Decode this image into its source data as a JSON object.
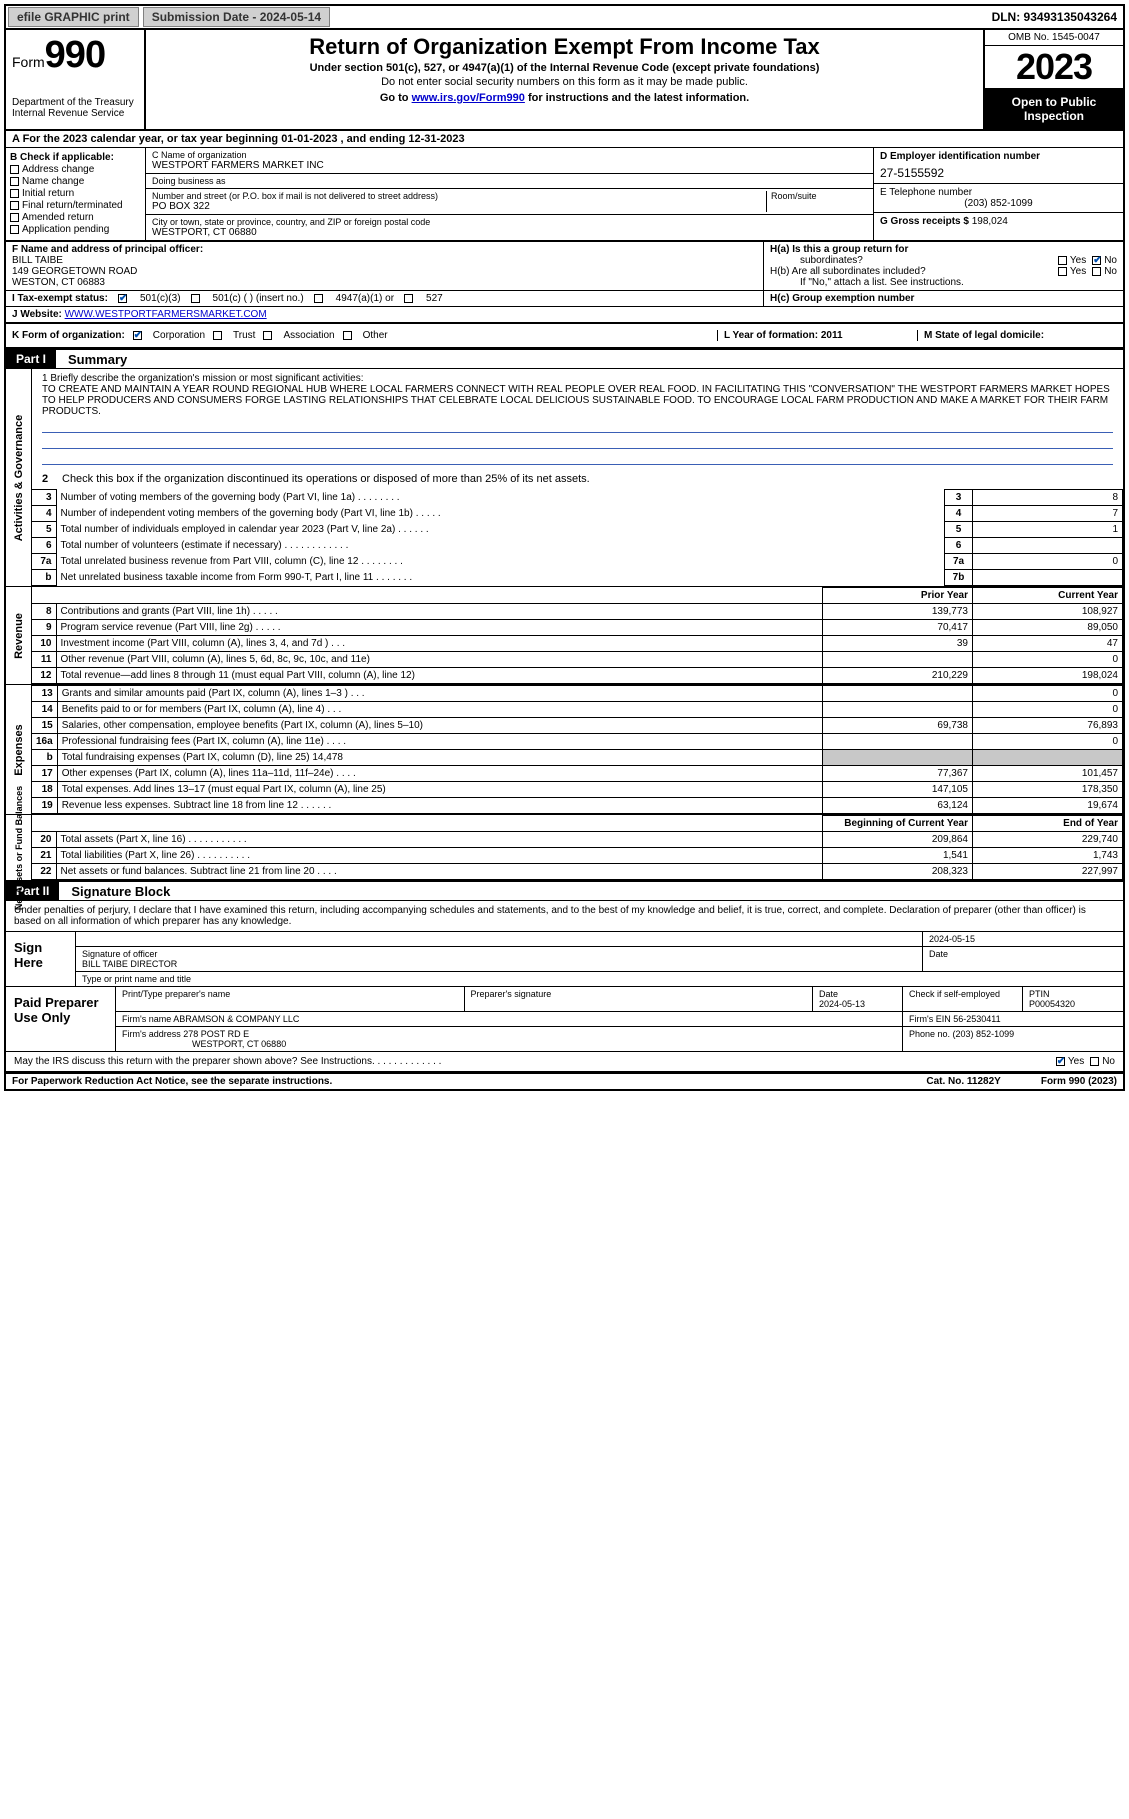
{
  "topbar": {
    "efile_btn": "efile GRAPHIC print",
    "subdate_label": "Submission Date - 2024-05-14",
    "dln_label": "DLN: 93493135043264"
  },
  "header": {
    "form_word": "Form",
    "form_no": "990",
    "dept": "Department of the Treasury",
    "irs": "Internal Revenue Service",
    "title": "Return of Organization Exempt From Income Tax",
    "sub1": "Under section 501(c), 527, or 4947(a)(1) of the Internal Revenue Code (except private foundations)",
    "sub2": "Do not enter social security numbers on this form as it may be made public.",
    "sub3_pre": "Go to ",
    "sub3_link": "www.irs.gov/Form990",
    "sub3_post": " for instructions and the latest information.",
    "omb": "OMB No. 1545-0047",
    "year": "2023",
    "inspect": "Open to Public Inspection"
  },
  "row_a": "A  For the 2023 calendar year, or tax year beginning 01-01-2023    , and ending 12-31-2023",
  "sec_b": {
    "title": "B Check if applicable:",
    "opts": [
      "Address change",
      "Name change",
      "Initial return",
      "Final return/terminated",
      "Amended return",
      "Application pending"
    ]
  },
  "sec_c": {
    "name_lbl": "C Name of organization",
    "name": "WESTPORT FARMERS MARKET INC",
    "dba_lbl": "Doing business as",
    "dba": "",
    "addr_lbl": "Number and street (or P.O. box if mail is not delivered to street address)",
    "room_lbl": "Room/suite",
    "addr": "PO BOX 322",
    "city_lbl": "City or town, state or province, country, and ZIP or foreign postal code",
    "city": "WESTPORT, CT  06880"
  },
  "sec_d": {
    "lbl": "D Employer identification number",
    "val": "27-5155592"
  },
  "sec_e": {
    "lbl": "E Telephone number",
    "val": "(203) 852-1099"
  },
  "sec_g": {
    "lbl": "G Gross receipts $",
    "val": "198,024"
  },
  "sec_f": {
    "lbl": "F Name and address of principal officer:",
    "name": "BILL TAIBE",
    "addr1": "149 GEORGETOWN ROAD",
    "addr2": "WESTON, CT  06883"
  },
  "sec_h": {
    "ha": "H(a)  Is this a group return for",
    "ha2": "subordinates?",
    "hb": "H(b)  Are all subordinates included?",
    "hb2": "If \"No,\" attach a list. See instructions.",
    "hc": "H(c)  Group exemption number  ",
    "yes": "Yes",
    "no": "No"
  },
  "sec_i": {
    "lbl": "I   Tax-exempt status:",
    "o1": "501(c)(3)",
    "o2": "501(c) (  ) (insert no.)",
    "o3": "4947(a)(1) or",
    "o4": "527"
  },
  "sec_j": {
    "lbl": "J   Website: ",
    "val": "WWW.WESTPORTFARMERSMARKET.COM"
  },
  "sec_k": {
    "lbl": "K Form of organization:",
    "opts": [
      "Corporation",
      "Trust",
      "Association",
      "Other"
    ]
  },
  "sec_l": {
    "lbl": "L Year of formation: 2011"
  },
  "sec_m": {
    "lbl": "M State of legal domicile:"
  },
  "part1": {
    "label": "Part I",
    "title": "Summary"
  },
  "mission": {
    "lead": "1   Briefly describe the organization's mission or most significant activities:",
    "text": "TO CREATE AND MAINTAIN A YEAR ROUND REGIONAL HUB WHERE LOCAL FARMERS CONNECT WITH REAL PEOPLE OVER REAL FOOD. IN FACILITATING THIS \"CONVERSATION\" THE WESTPORT FARMERS MARKET HOPES TO HELP PRODUCERS AND CONSUMERS FORGE LASTING RELATIONSHIPS THAT CELEBRATE LOCAL DELICIOUS SUSTAINABLE FOOD. TO ENCOURAGE LOCAL FARM PRODUCTION AND MAKE A MARKET FOR THEIR FARM PRODUCTS."
  },
  "gov_lines": {
    "l2": "Check this box       if the organization discontinued its operations or disposed of more than 25% of its net assets.",
    "rows": [
      {
        "n": "3",
        "d": "Number of voting members of the governing body (Part VI, line 1a)   .    .    .    .    .    .    .    .",
        "box": "3",
        "v": "8"
      },
      {
        "n": "4",
        "d": "Number of independent voting members of the governing body (Part VI, line 1b)   .    .    .    .    .",
        "box": "4",
        "v": "7"
      },
      {
        "n": "5",
        "d": "Total number of individuals employed in calendar year 2023 (Part V, line 2a)   .    .    .    .    .    .",
        "box": "5",
        "v": "1"
      },
      {
        "n": "6",
        "d": "Total number of volunteers (estimate if necessary)    .    .    .    .    .    .    .    .    .    .    .    .",
        "box": "6",
        "v": ""
      },
      {
        "n": "7a",
        "d": "Total unrelated business revenue from Part VIII, column (C), line 12    .    .    .    .    .    .    .    .",
        "box": "7a",
        "v": "0"
      },
      {
        "n": "b",
        "d": "Net unrelated business taxable income from Form 990-T, Part I, line 11   .    .    .    .    .    .    .",
        "box": "7b",
        "v": ""
      }
    ]
  },
  "fin": {
    "hdr_prior": "Prior Year",
    "hdr_curr": "Current Year",
    "revenue_label": "Revenue",
    "expenses_label": "Expenses",
    "na_label": "Net Assets or Fund Balances",
    "rows_rev": [
      {
        "n": "8",
        "d": "Contributions and grants (Part VIII, line 1h)    .    .    .    .    .",
        "p": "139,773",
        "c": "108,927"
      },
      {
        "n": "9",
        "d": "Program service revenue (Part VIII, line 2g)    .    .    .    .    .",
        "p": "70,417",
        "c": "89,050"
      },
      {
        "n": "10",
        "d": "Investment income (Part VIII, column (A), lines 3, 4, and 7d )    .    .    .",
        "p": "39",
        "c": "47"
      },
      {
        "n": "11",
        "d": "Other revenue (Part VIII, column (A), lines 5, 6d, 8c, 9c, 10c, and 11e)",
        "p": "",
        "c": "0"
      },
      {
        "n": "12",
        "d": "Total revenue—add lines 8 through 11 (must equal Part VIII, column (A), line 12)",
        "p": "210,229",
        "c": "198,024"
      }
    ],
    "rows_exp": [
      {
        "n": "13",
        "d": "Grants and similar amounts paid (Part IX, column (A), lines 1–3 )    .    .    .",
        "p": "",
        "c": "0"
      },
      {
        "n": "14",
        "d": "Benefits paid to or for members (Part IX, column (A), line 4)    .    .    .",
        "p": "",
        "c": "0"
      },
      {
        "n": "15",
        "d": "Salaries, other compensation, employee benefits (Part IX, column (A), lines 5–10)",
        "p": "69,738",
        "c": "76,893"
      },
      {
        "n": "16a",
        "d": "Professional fundraising fees (Part IX, column (A), line 11e)    .    .    .    .",
        "p": "",
        "c": "0"
      },
      {
        "n": "b",
        "d": "Total fundraising expenses (Part IX, column (D), line 25) 14,478",
        "p": "SHADE",
        "c": "SHADE"
      },
      {
        "n": "17",
        "d": "Other expenses (Part IX, column (A), lines 11a–11d, 11f–24e)    .    .    .    .",
        "p": "77,367",
        "c": "101,457"
      },
      {
        "n": "18",
        "d": "Total expenses. Add lines 13–17 (must equal Part IX, column (A), line 25)",
        "p": "147,105",
        "c": "178,350"
      },
      {
        "n": "19",
        "d": "Revenue less expenses. Subtract line 18 from line 12    .    .    .    .    .    .",
        "p": "63,124",
        "c": "19,674"
      }
    ],
    "hdr_beg": "Beginning of Current Year",
    "hdr_end": "End of Year",
    "rows_na": [
      {
        "n": "20",
        "d": "Total assets (Part X, line 16)    .    .    .    .    .    .    .    .    .    .    .",
        "p": "209,864",
        "c": "229,740"
      },
      {
        "n": "21",
        "d": "Total liabilities (Part X, line 26)    .    .    .    .    .    .    .    .    .    .",
        "p": "1,541",
        "c": "1,743"
      },
      {
        "n": "22",
        "d": "Net assets or fund balances. Subtract line 21 from line 20    .    .    .    .",
        "p": "208,323",
        "c": "227,997"
      }
    ]
  },
  "part2": {
    "label": "Part II",
    "title": "Signature Block"
  },
  "sig": {
    "penalty": "Under penalties of perjury, I declare that I have examined this return, including accompanying schedules and statements, and to the best of my knowledge and belief, it is true, correct, and complete. Declaration of preparer (other than officer) is based on all information of which preparer has any knowledge.",
    "sign_here": "Sign Here",
    "sig_officer": "Signature of officer",
    "officer": "BILL TAIBE  DIRECTOR",
    "type_name": "Type or print name and title",
    "date1": "2024-05-15",
    "date_lbl": "Date",
    "paid": "Paid Preparer Use Only",
    "prep_name_lbl": "Print/Type preparer's name",
    "prep_sig_lbl": "Preparer's signature",
    "date2_lbl": "Date",
    "date2": "2024-05-13",
    "check_lbl": "Check        if self-employed",
    "ptin_lbl": "PTIN",
    "ptin": "P00054320",
    "firm_name_lbl": "Firm's name    ",
    "firm_name": "ABRAMSON & COMPANY LLC",
    "firm_ein_lbl": "Firm's EIN  ",
    "firm_ein": "56-2530411",
    "firm_addr_lbl": "Firm's address ",
    "firm_addr1": "278 POST RD E",
    "firm_addr2": "WESTPORT, CT  06880",
    "phone_lbl": "Phone no. ",
    "phone": "(203) 852-1099",
    "discuss": "May the IRS discuss this return with the preparer shown above? See Instructions.    .    .    .    .    .    .    .    .    .    .    .    .",
    "yes": "Yes",
    "no": "No"
  },
  "footer": {
    "left": "For Paperwork Reduction Act Notice, see the separate instructions.",
    "mid": "Cat. No. 11282Y",
    "right": "Form 990 (2023)"
  },
  "colors": {
    "link": "#0000cc",
    "check": "#0050b0",
    "underline": "#3a5fb5"
  }
}
